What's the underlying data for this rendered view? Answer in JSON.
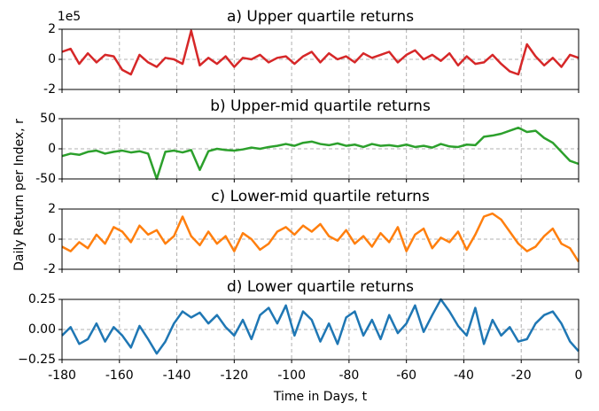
{
  "ylabel": "Daily Return per Index, r",
  "chart_data": [
    {
      "type": "line",
      "title": "a) Upper quartile returns",
      "offset_text": "1e5",
      "color": "#d62728",
      "x": [
        -180,
        -177,
        -174,
        -171,
        -168,
        -165,
        -162,
        -159,
        -156,
        -153,
        -150,
        -147,
        -144,
        -141,
        -138,
        -135,
        -132,
        -129,
        -126,
        -123,
        -120,
        -117,
        -114,
        -111,
        -108,
        -105,
        -102,
        -99,
        -96,
        -93,
        -90,
        -87,
        -84,
        -81,
        -78,
        -75,
        -72,
        -69,
        -66,
        -63,
        -60,
        -57,
        -54,
        -51,
        -48,
        -45,
        -42,
        -39,
        -36,
        -33,
        -30,
        -27,
        -24,
        -21,
        -18,
        -15,
        -12,
        -9,
        -6,
        -3,
        0
      ],
      "values": [
        0.5,
        0.7,
        -0.3,
        0.4,
        -0.2,
        0.3,
        0.2,
        -0.7,
        -1.0,
        0.3,
        -0.2,
        -0.5,
        0.1,
        0,
        -0.3,
        1.9,
        -0.4,
        0.1,
        -0.3,
        0.2,
        -0.5,
        0.1,
        0,
        0.3,
        -0.2,
        0.1,
        0.2,
        -0.3,
        0.2,
        0.5,
        -0.2,
        0.4,
        0,
        0.2,
        -0.2,
        0.4,
        0.1,
        0.3,
        0.5,
        -0.2,
        0.3,
        0.6,
        0,
        0.3,
        -0.1,
        0.4,
        -0.4,
        0.2,
        -0.3,
        -0.2,
        0.3,
        -0.3,
        -0.8,
        -1.0,
        1.0,
        0.2,
        -0.4,
        0.1,
        -0.5,
        0.3,
        0.1
      ],
      "xlim": [
        -180,
        0
      ],
      "xticks": [
        -180,
        -160,
        -140,
        -120,
        -100,
        -80,
        -60,
        -40,
        -20,
        0
      ],
      "ylim": [
        -2,
        2
      ],
      "yticks": [
        -2,
        0,
        2
      ],
      "grid": true
    },
    {
      "type": "line",
      "title": "b) Upper-mid quartile returns",
      "color": "#2ca02c",
      "x": [
        -180,
        -177,
        -174,
        -171,
        -168,
        -165,
        -162,
        -159,
        -156,
        -153,
        -150,
        -147,
        -144,
        -141,
        -138,
        -135,
        -132,
        -129,
        -126,
        -123,
        -120,
        -117,
        -114,
        -111,
        -108,
        -105,
        -102,
        -99,
        -96,
        -93,
        -90,
        -87,
        -84,
        -81,
        -78,
        -75,
        -72,
        -69,
        -66,
        -63,
        -60,
        -57,
        -54,
        -51,
        -48,
        -45,
        -42,
        -39,
        -36,
        -33,
        -30,
        -27,
        -24,
        -21,
        -18,
        -15,
        -12,
        -9,
        -6,
        -3,
        0
      ],
      "values": [
        -12,
        -8,
        -10,
        -5,
        -3,
        -8,
        -5,
        -3,
        -6,
        -4,
        -8,
        -50,
        -5,
        -3,
        -6,
        -2,
        -35,
        -4,
        0,
        -2,
        -3,
        -1,
        2,
        0,
        3,
        5,
        8,
        5,
        10,
        12,
        8,
        6,
        9,
        5,
        7,
        3,
        8,
        5,
        6,
        4,
        7,
        3,
        5,
        2,
        8,
        4,
        3,
        7,
        6,
        20,
        22,
        25,
        30,
        35,
        28,
        30,
        18,
        10,
        -5,
        -20,
        -25
      ],
      "xlim": [
        -180,
        0
      ],
      "xticks": [
        -180,
        -160,
        -140,
        -120,
        -100,
        -80,
        -60,
        -40,
        -20,
        0
      ],
      "ylim": [
        -50,
        50
      ],
      "yticks": [
        -50,
        0,
        50
      ],
      "grid": true
    },
    {
      "type": "line",
      "title": "c) Lower-mid quartile returns",
      "color": "#ff7f0e",
      "x": [
        -180,
        -177,
        -174,
        -171,
        -168,
        -165,
        -162,
        -159,
        -156,
        -153,
        -150,
        -147,
        -144,
        -141,
        -138,
        -135,
        -132,
        -129,
        -126,
        -123,
        -120,
        -117,
        -114,
        -111,
        -108,
        -105,
        -102,
        -99,
        -96,
        -93,
        -90,
        -87,
        -84,
        -81,
        -78,
        -75,
        -72,
        -69,
        -66,
        -63,
        -60,
        -57,
        -54,
        -51,
        -48,
        -45,
        -42,
        -39,
        -36,
        -33,
        -30,
        -27,
        -24,
        -21,
        -18,
        -15,
        -12,
        -9,
        -6,
        -3,
        0
      ],
      "values": [
        -0.5,
        -0.8,
        -0.2,
        -0.6,
        0.3,
        -0.3,
        0.8,
        0.5,
        -0.2,
        0.9,
        0.3,
        0.6,
        -0.3,
        0.2,
        1.5,
        0.2,
        -0.4,
        0.5,
        -0.3,
        0.2,
        -0.8,
        0.4,
        0,
        -0.7,
        -0.3,
        0.5,
        0.8,
        0.3,
        0.9,
        0.5,
        1.0,
        0.2,
        -0.1,
        0.6,
        -0.3,
        0.2,
        -0.5,
        0.4,
        -0.2,
        0.8,
        -0.8,
        0.3,
        0.7,
        -0.6,
        0.1,
        -0.2,
        0.5,
        -0.7,
        0.3,
        1.5,
        1.7,
        1.3,
        0.5,
        -0.3,
        -0.8,
        -0.5,
        0.2,
        0.7,
        -0.3,
        -0.6,
        -1.5
      ],
      "xlim": [
        -180,
        0
      ],
      "xticks": [
        -180,
        -160,
        -140,
        -120,
        -100,
        -80,
        -60,
        -40,
        -20,
        0
      ],
      "ylim": [
        -2,
        2
      ],
      "yticks": [
        -2,
        0,
        2
      ],
      "grid": true
    },
    {
      "type": "line",
      "title": "d) Lower quartile returns",
      "color": "#1f77b4",
      "xlabel": "Time in Days, t",
      "x": [
        -180,
        -177,
        -174,
        -171,
        -168,
        -165,
        -162,
        -159,
        -156,
        -153,
        -150,
        -147,
        -144,
        -141,
        -138,
        -135,
        -132,
        -129,
        -126,
        -123,
        -120,
        -117,
        -114,
        -111,
        -108,
        -105,
        -102,
        -99,
        -96,
        -93,
        -90,
        -87,
        -84,
        -81,
        -78,
        -75,
        -72,
        -69,
        -66,
        -63,
        -60,
        -57,
        -54,
        -51,
        -48,
        -45,
        -42,
        -39,
        -36,
        -33,
        -30,
        -27,
        -24,
        -21,
        -18,
        -15,
        -12,
        -9,
        -6,
        -3,
        0
      ],
      "values": [
        -0.05,
        0.02,
        -0.12,
        -0.08,
        0.05,
        -0.1,
        0.02,
        -0.05,
        -0.15,
        0.03,
        -0.08,
        -0.2,
        -0.1,
        0.05,
        0.15,
        0.1,
        0.14,
        0.05,
        0.12,
        0.02,
        -0.05,
        0.08,
        -0.08,
        0.12,
        0.18,
        0.05,
        0.2,
        -0.05,
        0.15,
        0.08,
        -0.1,
        0.05,
        -0.12,
        0.1,
        0.15,
        -0.05,
        0.08,
        -0.08,
        0.12,
        -0.03,
        0.05,
        0.2,
        -0.02,
        0.12,
        0.25,
        0.15,
        0.03,
        -0.05,
        0.18,
        -0.12,
        0.08,
        -0.05,
        0.02,
        -0.1,
        -0.08,
        0.05,
        0.12,
        0.15,
        0.05,
        -0.1,
        -0.18
      ],
      "xlim": [
        -180,
        0
      ],
      "xticks": [
        -180,
        -160,
        -140,
        -120,
        -100,
        -80,
        -60,
        -40,
        -20,
        0
      ],
      "ylim": [
        -0.25,
        0.25
      ],
      "yticks": [
        {
          "value": -0.25,
          "label": "−0.25"
        },
        {
          "value": 0,
          "label": "0.00"
        },
        0.25
      ],
      "grid": true
    }
  ]
}
